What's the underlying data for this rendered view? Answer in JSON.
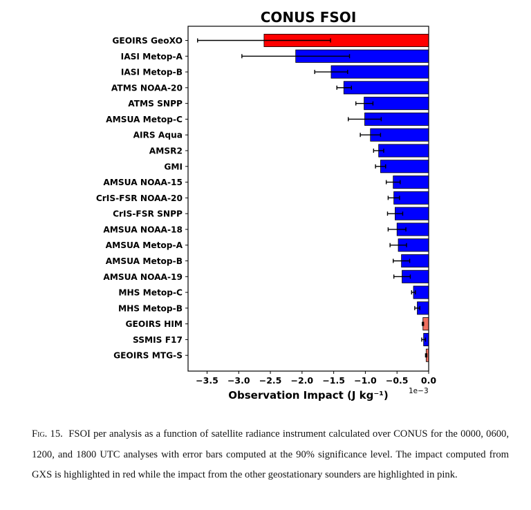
{
  "chart_data": {
    "type": "bar",
    "orientation": "horizontal",
    "title": "CONUS FSOI",
    "xlabel": "Observation Impact (J kg⁻¹)",
    "x_scale_label": "1e−3",
    "xlim": [
      -3.8,
      0.0
    ],
    "xticks": [
      "−3.5",
      "−3.0",
      "−2.5",
      "−2.0",
      "−1.5",
      "−1.0",
      "−0.5",
      "0.0"
    ],
    "xtick_values": [
      -3.5,
      -3.0,
      -2.5,
      -2.0,
      -1.5,
      -1.0,
      -0.5,
      0.0
    ],
    "grid": false,
    "bars": [
      {
        "label": "GEOIRS GeoXO",
        "value": -2.6,
        "err_low": -3.65,
        "err_high": -1.55,
        "color": "#ff0000"
      },
      {
        "label": "IASI Metop-A",
        "value": -2.1,
        "err_low": -2.95,
        "err_high": -1.25,
        "color": "#0000ff"
      },
      {
        "label": "IASI Metop-B",
        "value": -1.54,
        "err_low": -1.8,
        "err_high": -1.28,
        "color": "#0000ff"
      },
      {
        "label": "ATMS NOAA-20",
        "value": -1.34,
        "err_low": -1.45,
        "err_high": -1.22,
        "color": "#0000ff"
      },
      {
        "label": "ATMS SNPP",
        "value": -1.02,
        "err_low": -1.15,
        "err_high": -0.88,
        "color": "#0000ff"
      },
      {
        "label": "AMSUA Metop-C",
        "value": -1.01,
        "err_low": -1.27,
        "err_high": -0.75,
        "color": "#0000ff"
      },
      {
        "label": "AIRS Aqua",
        "value": -0.92,
        "err_low": -1.08,
        "err_high": -0.76,
        "color": "#0000ff"
      },
      {
        "label": "AMSR2",
        "value": -0.79,
        "err_low": -0.87,
        "err_high": -0.71,
        "color": "#0000ff"
      },
      {
        "label": "GMI",
        "value": -0.76,
        "err_low": -0.84,
        "err_high": -0.68,
        "color": "#0000ff"
      },
      {
        "label": "AMSUA NOAA-15",
        "value": -0.56,
        "err_low": -0.67,
        "err_high": -0.45,
        "color": "#0000ff"
      },
      {
        "label": "CrIS-FSR NOAA-20",
        "value": -0.55,
        "err_low": -0.64,
        "err_high": -0.46,
        "color": "#0000ff"
      },
      {
        "label": "CrIS-FSR SNPP",
        "value": -0.53,
        "err_low": -0.65,
        "err_high": -0.41,
        "color": "#0000ff"
      },
      {
        "label": "AMSUA NOAA-18",
        "value": -0.5,
        "err_low": -0.64,
        "err_high": -0.36,
        "color": "#0000ff"
      },
      {
        "label": "AMSUA Metop-A",
        "value": -0.48,
        "err_low": -0.61,
        "err_high": -0.35,
        "color": "#0000ff"
      },
      {
        "label": "AMSUA Metop-B",
        "value": -0.43,
        "err_low": -0.56,
        "err_high": -0.3,
        "color": "#0000ff"
      },
      {
        "label": "AMSUA NOAA-19",
        "value": -0.42,
        "err_low": -0.55,
        "err_high": -0.29,
        "color": "#0000ff"
      },
      {
        "label": "MHS Metop-C",
        "value": -0.24,
        "err_low": -0.27,
        "err_high": -0.21,
        "color": "#0000ff"
      },
      {
        "label": "MHS Metop-B",
        "value": -0.18,
        "err_low": -0.22,
        "err_high": -0.14,
        "color": "#0000ff"
      },
      {
        "label": "GEOIRS HIM",
        "value": -0.09,
        "err_low": -0.1,
        "err_high": -0.08,
        "color": "#f07060"
      },
      {
        "label": "SSMIS F17",
        "value": -0.08,
        "err_low": -0.11,
        "err_high": -0.05,
        "color": "#0000ff"
      },
      {
        "label": "GEOIRS MTG-S",
        "value": -0.04,
        "err_low": -0.05,
        "err_high": -0.03,
        "color": "#f07060"
      }
    ]
  },
  "caption": {
    "label": "Fig. 15.",
    "text": "FSOI per analysis as a function of satellite radiance instrument calculated over CONUS for the 0000, 0600, 1200, and 1800 UTC analyses with error bars computed at the 90% significance level. The impact computed from GXS is highlighted in red while the impact from the other geostationary sounders are highlighted in pink."
  }
}
